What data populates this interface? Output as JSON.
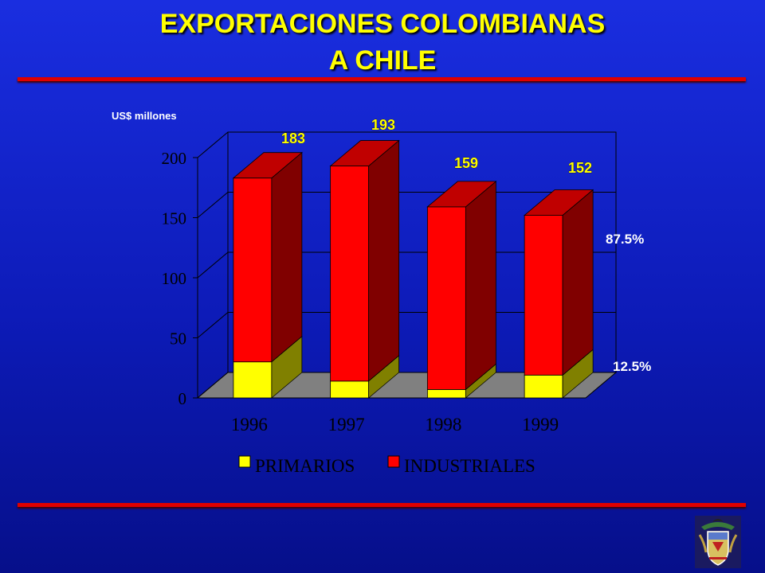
{
  "title": {
    "line1": "EXPORTACIONES COLOMBIANAS",
    "line2": "A CHILE"
  },
  "chart_data": {
    "type": "bar",
    "stacked": true,
    "three_d": true,
    "unit_label": "US$ millones",
    "categories": [
      "1996",
      "1997",
      "1998",
      "1999"
    ],
    "series": [
      {
        "name": "PRIMARIOS",
        "color": "#ffff00",
        "values": [
          30,
          14,
          7,
          19
        ]
      },
      {
        "name": "INDUSTRIALES",
        "color": "#ff0000",
        "values": [
          153,
          179,
          152,
          133
        ]
      }
    ],
    "totals": [
      "183",
      "193",
      "159",
      "152"
    ],
    "ylim": [
      0,
      200
    ],
    "yticks": [
      "0",
      "50",
      "100",
      "150",
      "200"
    ],
    "grid": true,
    "legend_position": "bottom",
    "share_labels": {
      "industriales": "87.5%",
      "primarios": "12.5%"
    }
  },
  "colors": {
    "background": "#0d1bb8",
    "title": "#ffff00",
    "rule": "#e00000",
    "floor": "#808080"
  },
  "emblem": {
    "icon": "coat-of-arms-icon"
  }
}
